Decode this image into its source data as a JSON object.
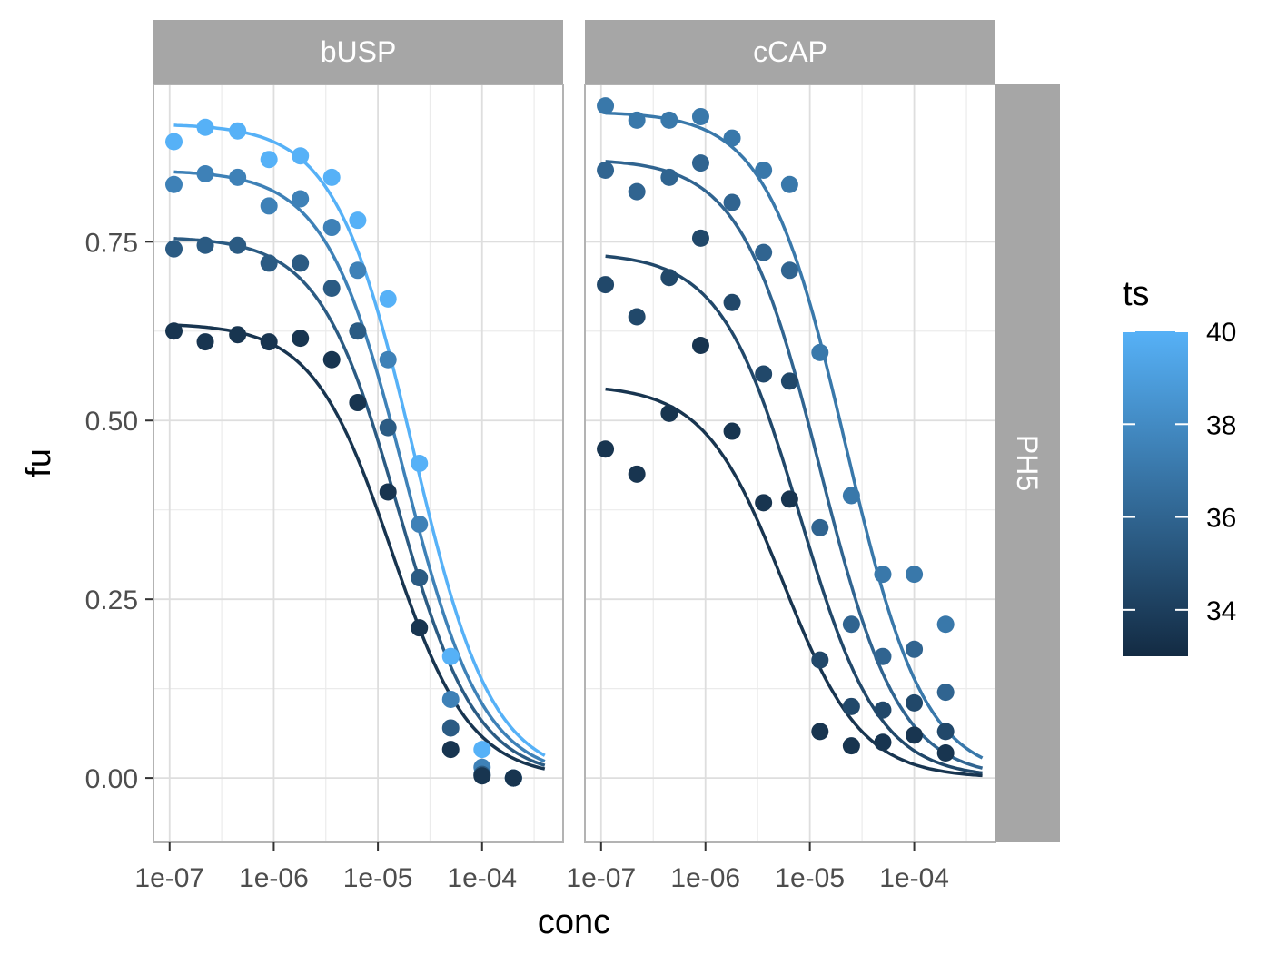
{
  "chart_data": {
    "type": "scatter",
    "xlabel": "conc",
    "ylabel": "fu",
    "x_scale": "log10",
    "xlim": [
      7e-08,
      0.0006
    ],
    "ylim": [
      -0.09,
      0.97
    ],
    "x_ticks": [
      1e-07,
      1e-06,
      1e-05,
      0.0001
    ],
    "x_tick_labels": [
      "1e-07",
      "1e-06",
      "1e-05",
      "1e-04"
    ],
    "y_ticks": [
      0,
      0.25,
      0.5,
      0.75
    ],
    "y_tick_labels": [
      "0.00",
      "0.25",
      "0.50",
      "0.75"
    ],
    "grid": true,
    "row_strip": "PH5",
    "legend": {
      "title": "ts",
      "position": "right",
      "type": "colorbar",
      "range": [
        33,
        40
      ],
      "breaks": [
        34,
        36,
        38,
        40
      ],
      "break_labels": [
        "34",
        "36",
        "38",
        "40"
      ],
      "low_color": "#132B43",
      "high_color": "#56B1F7"
    },
    "panels": [
      {
        "strip": "bUSP",
        "points": [
          {
            "ts": 40,
            "x": [
              1.1e-07,
              2.2e-07,
              4.5e-07,
              9e-07,
              1.8e-06,
              3.6e-06,
              6.4e-06,
              1.25e-05,
              2.5e-05,
              5e-05,
              0.0001,
              0.0002
            ],
            "y": [
              0.89,
              0.91,
              0.905,
              0.865,
              0.87,
              0.84,
              0.78,
              0.67,
              0.44,
              0.17,
              0.04,
              0.0
            ]
          },
          {
            "ts": 37.5,
            "x": [
              1.1e-07,
              2.2e-07,
              4.5e-07,
              9e-07,
              1.8e-06,
              3.6e-06,
              6.4e-06,
              1.25e-05,
              2.5e-05,
              5e-05,
              0.0001,
              0.0002
            ],
            "y": [
              0.83,
              0.845,
              0.84,
              0.8,
              0.81,
              0.77,
              0.71,
              0.585,
              0.355,
              0.11,
              0.015,
              0.0
            ]
          },
          {
            "ts": 35.5,
            "x": [
              1.1e-07,
              2.2e-07,
              4.5e-07,
              9e-07,
              1.8e-06,
              3.6e-06,
              6.4e-06,
              1.25e-05,
              2.5e-05,
              5e-05,
              0.0001,
              0.0002
            ],
            "y": [
              0.74,
              0.745,
              0.745,
              0.72,
              0.72,
              0.685,
              0.625,
              0.49,
              0.28,
              0.07,
              0.005,
              0.0
            ]
          },
          {
            "ts": 33.5,
            "x": [
              1.1e-07,
              2.2e-07,
              4.5e-07,
              9e-07,
              1.8e-06,
              3.6e-06,
              6.4e-06,
              1.25e-05,
              2.5e-05,
              5e-05,
              0.0001,
              0.0002
            ],
            "y": [
              0.625,
              0.61,
              0.62,
              0.61,
              0.615,
              0.585,
              0.525,
              0.4,
              0.21,
              0.04,
              0.003,
              0.0
            ]
          }
        ],
        "fits": [
          {
            "ts": 40,
            "top": 0.915,
            "ec50": 2.2e-05,
            "hill": 1.15,
            "xmin": 1.1e-07,
            "xmax": 0.0004
          },
          {
            "ts": 37.5,
            "top": 0.85,
            "ec50": 1.8e-05,
            "hill": 1.15,
            "xmin": 1.1e-07,
            "xmax": 0.0004
          },
          {
            "ts": 35.5,
            "top": 0.757,
            "ec50": 1.55e-05,
            "hill": 1.15,
            "xmin": 1.1e-07,
            "xmax": 0.0004
          },
          {
            "ts": 33.5,
            "top": 0.636,
            "ec50": 1.35e-05,
            "hill": 1.15,
            "xmin": 1.1e-07,
            "xmax": 0.0004
          }
        ]
      },
      {
        "strip": "cCAP",
        "points": [
          {
            "ts": 37,
            "x": [
              1.1e-07,
              2.2e-07,
              4.5e-07,
              9e-07,
              1.8e-06,
              3.6e-06,
              6.4e-06,
              1.25e-05,
              2.5e-05,
              5e-05,
              0.0001,
              0.0002
            ],
            "y": [
              0.94,
              0.92,
              0.92,
              0.925,
              0.895,
              0.85,
              0.83,
              0.595,
              0.395,
              0.285,
              0.285,
              0.215
            ]
          },
          {
            "ts": 36,
            "x": [
              1.1e-07,
              2.2e-07,
              4.5e-07,
              9e-07,
              1.8e-06,
              3.6e-06,
              6.4e-06,
              1.25e-05,
              2.5e-05,
              5e-05,
              0.0001,
              0.0002
            ],
            "y": [
              0.85,
              0.82,
              0.84,
              0.86,
              0.805,
              0.735,
              0.71,
              0.35,
              0.215,
              0.17,
              0.18,
              0.12
            ]
          },
          {
            "ts": 34.5,
            "x": [
              1.1e-07,
              2.2e-07,
              4.5e-07,
              9e-07,
              1.8e-06,
              3.6e-06,
              6.4e-06,
              1.25e-05,
              2.5e-05,
              5e-05,
              0.0001,
              0.0002
            ],
            "y": [
              0.69,
              0.645,
              0.7,
              0.755,
              0.665,
              0.565,
              0.555,
              0.165,
              0.1,
              0.095,
              0.105,
              0.065
            ]
          },
          {
            "ts": 33.5,
            "x": [
              1.1e-07,
              2.2e-07,
              4.5e-07,
              9e-07,
              1.8e-06,
              3.6e-06,
              6.4e-06,
              1.25e-05,
              2.5e-05,
              5e-05,
              0.0001,
              0.0002
            ],
            "y": [
              0.46,
              0.425,
              0.51,
              0.605,
              0.485,
              0.385,
              0.39,
              0.065,
              0.045,
              0.05,
              0.06,
              0.035
            ]
          }
        ],
        "fits": [
          {
            "ts": 37,
            "top": 0.932,
            "ec50": 2.2e-05,
            "hill": 1.15,
            "xmin": 1.1e-07,
            "xmax": 0.00045
          },
          {
            "ts": 36,
            "top": 0.866,
            "ec50": 1.25e-05,
            "hill": 1.15,
            "xmin": 1.1e-07,
            "xmax": 0.00045
          },
          {
            "ts": 34.5,
            "top": 0.735,
            "ec50": 8e-06,
            "hill": 1.15,
            "xmin": 1.1e-07,
            "xmax": 0.00045
          },
          {
            "ts": 33.5,
            "top": 0.55,
            "ec50": 5.5e-06,
            "hill": 1.15,
            "xmin": 1.1e-07,
            "xmax": 0.00045
          }
        ]
      }
    ]
  }
}
